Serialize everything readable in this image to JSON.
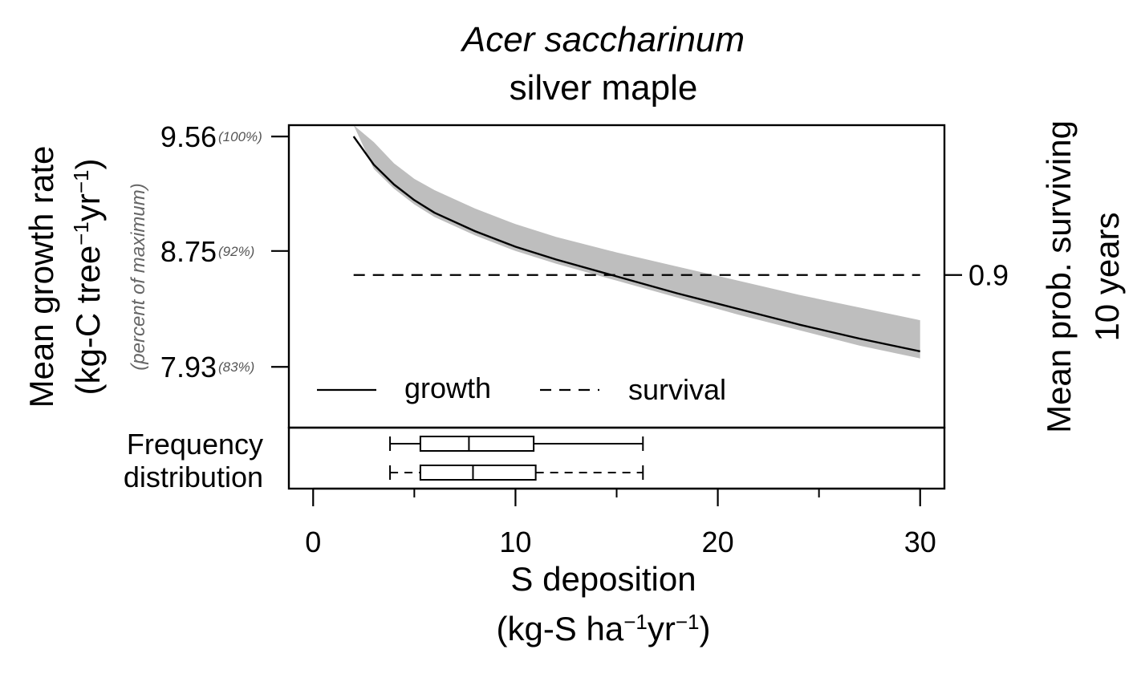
{
  "chart_data": {
    "type": "line",
    "title": "Acer saccharinum",
    "subtitle": "silver maple",
    "xlabel_line1": "S deposition",
    "xlabel_line2": "(kg-S ha",
    "xlabel_unit_a": "yr",
    "xlabel_close": ")",
    "exponent": "−1",
    "ylabel_line1": "Mean growth rate",
    "ylabel_line2_a": "(kg-C tree",
    "ylabel_line2_b": "yr",
    "ylabel_close": ")",
    "y2label_line1": "Mean prob. surviving",
    "y2label_line2": "10 years",
    "percent_label": "(percent of maximum)",
    "xlim": [
      -1.2,
      31.2
    ],
    "ylim": [
      7.5,
      9.64
    ],
    "x_ticks": [
      0,
      10,
      20,
      30
    ],
    "x_minor_ticks": [
      5,
      15,
      25
    ],
    "y_ticks": [
      {
        "value": 9.56,
        "label": "9.56",
        "pct": "(100%)"
      },
      {
        "value": 8.75,
        "label": "8.75",
        "pct": "(92%)"
      },
      {
        "value": 7.93,
        "label": "7.93",
        "pct": "(83%)"
      }
    ],
    "y2_ticks": [
      {
        "value": 8.58,
        "label": "0.9"
      }
    ],
    "series": [
      {
        "name": "growth",
        "style": "solid",
        "x": [
          2,
          3,
          4,
          5,
          6,
          8,
          10,
          12,
          15,
          18,
          21,
          24,
          27,
          30
        ],
        "y": [
          9.56,
          9.36,
          9.22,
          9.11,
          9.02,
          8.89,
          8.78,
          8.69,
          8.57,
          8.45,
          8.34,
          8.23,
          8.13,
          8.04
        ],
        "band_upper": [
          9.64,
          9.52,
          9.37,
          9.26,
          9.18,
          9.05,
          8.94,
          8.85,
          8.74,
          8.64,
          8.54,
          8.44,
          8.35,
          8.26
        ],
        "band_lower": [
          9.64,
          9.33,
          9.19,
          9.08,
          8.99,
          8.86,
          8.75,
          8.66,
          8.54,
          8.42,
          8.3,
          8.19,
          8.08,
          7.99
        ]
      },
      {
        "name": "survival",
        "style": "dashed",
        "x": [
          2,
          30
        ],
        "y": [
          8.58,
          8.58
        ]
      }
    ],
    "band_color": "#bebebe",
    "legend": {
      "placement": "bottom-left",
      "items": [
        "growth",
        "survival"
      ]
    },
    "frequency_label_line1": "Frequency",
    "frequency_label_line2": "distribution",
    "boxplots": [
      {
        "style": "solid",
        "min": 3.8,
        "q1": 5.3,
        "median": 7.7,
        "q3": 10.9,
        "max": 16.3
      },
      {
        "style": "dashed",
        "min": 3.8,
        "q1": 5.3,
        "median": 7.9,
        "q3": 11.0,
        "max": 16.3
      }
    ]
  }
}
